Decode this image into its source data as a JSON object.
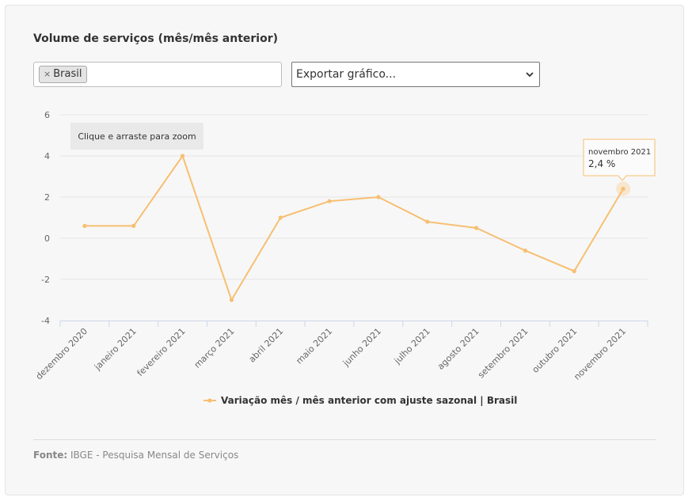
{
  "title": "Volume de serviços (mês/mês anterior)",
  "filter": {
    "tag_label": "Brasil",
    "tag_remove_icon": "×"
  },
  "export": {
    "label": "Exportar gráfico..."
  },
  "zoom_hint": "Clique e arraste para zoom",
  "tooltip": {
    "date": "novembro 2021",
    "value": "2,4 %"
  },
  "source": {
    "label": "Fonte:",
    "text": "IBGE - Pesquisa Mensal de Serviços"
  },
  "colors": {
    "series": "#f7bf72",
    "grid": "#e6e6e6",
    "axis": "#ccd6eb"
  },
  "chart_data": {
    "type": "line",
    "title": "Volume de serviços (mês/mês anterior)",
    "categories": [
      "dezembro 2020",
      "janeiro 2021",
      "fevereiro 2021",
      "março 2021",
      "abril 2021",
      "maio 2021",
      "junho 2021",
      "julho 2021",
      "agosto 2021",
      "setembro 2021",
      "outubro 2021",
      "novembro 2021"
    ],
    "series": [
      {
        "name": "Variação mês / mês anterior com ajuste sazonal | Brasil",
        "values": [
          0.6,
          0.6,
          4.0,
          -3.0,
          1.0,
          1.8,
          2.0,
          0.8,
          0.5,
          -0.6,
          -1.6,
          2.4
        ]
      }
    ],
    "yticks": [
      6,
      4,
      2,
      0,
      -2,
      -4
    ],
    "ylim": [
      -4,
      6
    ],
    "grid": true,
    "legend_position": "bottom-center",
    "xlabel": "",
    "ylabel": ""
  }
}
